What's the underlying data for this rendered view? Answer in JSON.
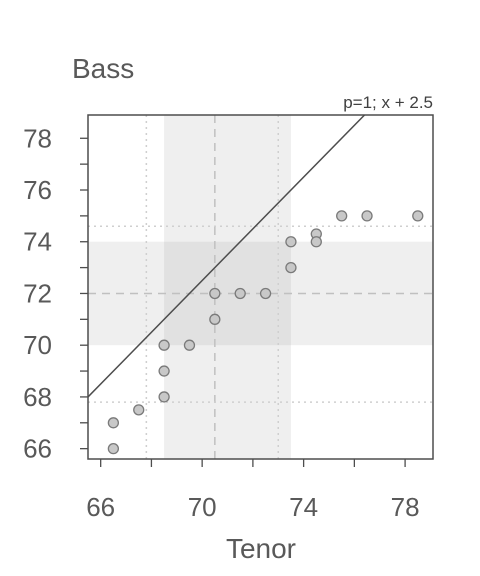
{
  "chart_data": {
    "type": "scatter",
    "title": "",
    "xlabel": "Tenor",
    "ylabel": "Bass",
    "xlim": [
      65.5,
      79.1
    ],
    "ylim": [
      65.6,
      78.9
    ],
    "x_ticks": [
      66,
      70,
      74,
      78
    ],
    "y_ticks": [
      66,
      68,
      70,
      72,
      74,
      76,
      78
    ],
    "x_minor_ticks": [
      66,
      68,
      70,
      72,
      74,
      76,
      78
    ],
    "y_minor_ticks": [
      66,
      67,
      68,
      69,
      70,
      71,
      72,
      73,
      74,
      75,
      76,
      77,
      78
    ],
    "reference_line": {
      "label": "p=1; x + 2.5",
      "slope": 1,
      "intercept": 2.5
    },
    "x_band": {
      "from": 68.5,
      "to": 73.5,
      "center": 70.5
    },
    "y_band": {
      "from": 70,
      "to": 74,
      "center": 72
    },
    "x_dotted_lines": [
      67.8,
      73
    ],
    "y_dotted_lines": [
      67.8,
      74.6
    ],
    "points": [
      {
        "x": 66.5,
        "y": 67
      },
      {
        "x": 66.5,
        "y": 66
      },
      {
        "x": 67.5,
        "y": 67.5
      },
      {
        "x": 68.5,
        "y": 70
      },
      {
        "x": 68.5,
        "y": 69
      },
      {
        "x": 68.5,
        "y": 68
      },
      {
        "x": 69.5,
        "y": 70
      },
      {
        "x": 70.5,
        "y": 72
      },
      {
        "x": 70.5,
        "y": 71
      },
      {
        "x": 71.5,
        "y": 72
      },
      {
        "x": 72.5,
        "y": 72
      },
      {
        "x": 73.5,
        "y": 74
      },
      {
        "x": 73.5,
        "y": 73
      },
      {
        "x": 74.5,
        "y": 74.3
      },
      {
        "x": 74.5,
        "y": 74
      },
      {
        "x": 75.5,
        "y": 75
      },
      {
        "x": 76.5,
        "y": 75
      },
      {
        "x": 78.5,
        "y": 75
      }
    ],
    "grid": false,
    "legend": "none"
  },
  "colors": {
    "band": "#efefef",
    "band_overlap": "#e1e1e1",
    "point_fill": "#c8c8c8",
    "point_stroke": "#7a7a7a",
    "line": "#4d4d4d",
    "frame": "#4d4d4d",
    "dashed": "#c0c0c0",
    "dotted": "#cfcfcf"
  }
}
